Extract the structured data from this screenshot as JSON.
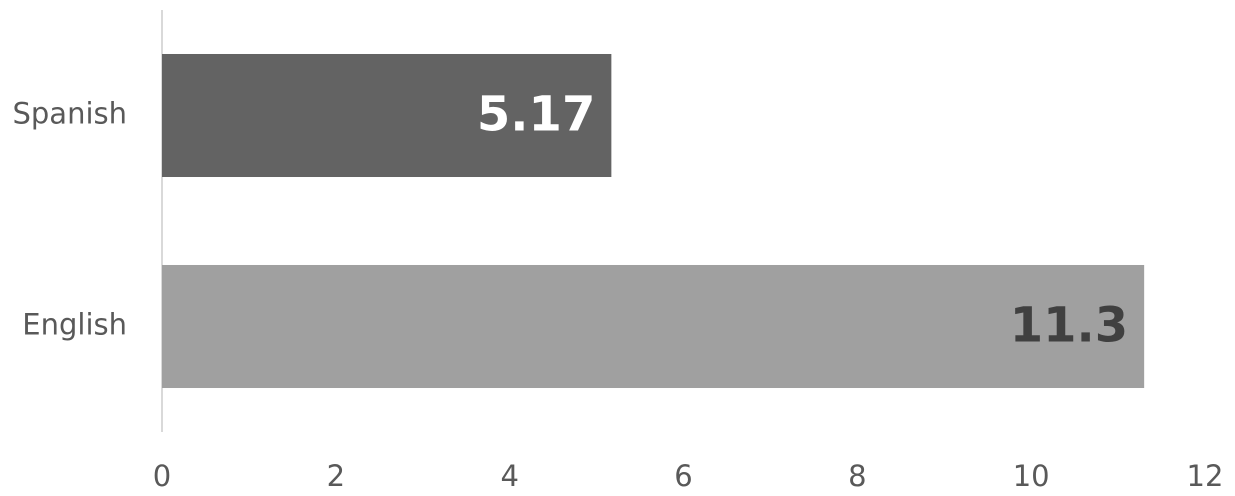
{
  "chart_data": {
    "type": "hbar",
    "categories": [
      "Spanish",
      "English"
    ],
    "values": [
      5.17,
      11.3
    ],
    "colors": [
      "#636363",
      "#a0a0a0"
    ],
    "label_colors": [
      "#ffffff",
      "#404040"
    ],
    "xlim": [
      0,
      12
    ],
    "xticks": [
      0,
      2,
      4,
      6,
      8,
      10,
      12
    ],
    "grid": false
  }
}
